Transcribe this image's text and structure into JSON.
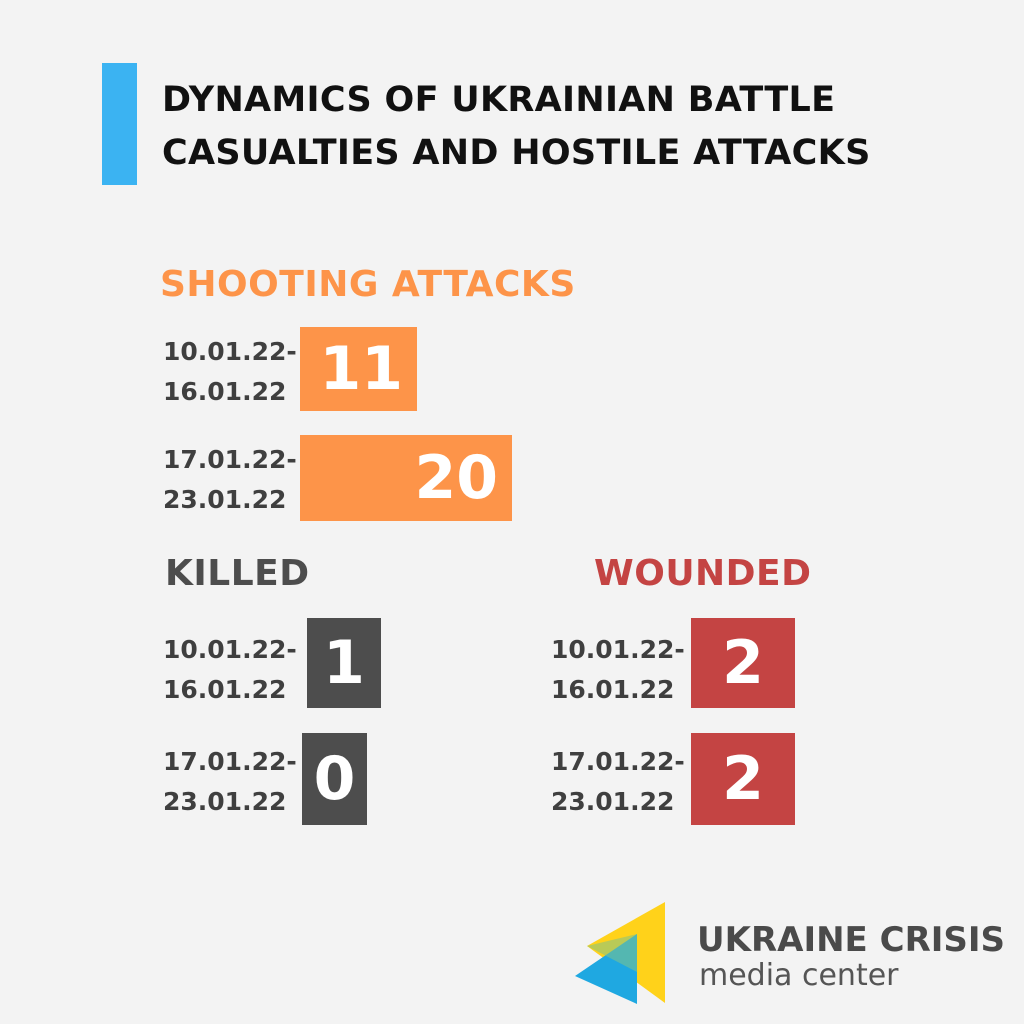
{
  "title_lines": [
    "DYNAMICS OF UKRAINIAN BATTLE",
    "CASUALTIES AND HOSTILE ATTACKS"
  ],
  "colors": {
    "accent": "#3bb3f2",
    "shooting": "#fd9449",
    "killed": "#4d4d4d",
    "wounded": "#c44443",
    "logo_yellow": "#ffd21a",
    "logo_blue": "#1fa8e1"
  },
  "chart_data": [
    {
      "type": "bar",
      "title": "SHOOTING  ATTACKS",
      "categories": [
        [
          "10.01.22-",
          "16.01.22"
        ],
        [
          "17.01.22-",
          "23.01.22"
        ]
      ],
      "values": [
        11,
        20
      ]
    },
    {
      "type": "table",
      "title": "KILLED",
      "categories": [
        [
          "10.01.22-",
          "16.01.22"
        ],
        [
          "17.01.22-",
          "23.01.22"
        ]
      ],
      "values": [
        1,
        0
      ]
    },
    {
      "type": "table",
      "title": "WOUNDED",
      "categories": [
        [
          "10.01.22-",
          "16.01.22"
        ],
        [
          "17.01.22-",
          "23.01.22"
        ]
      ],
      "values": [
        2,
        2
      ]
    }
  ],
  "logo": {
    "line1": "UKRAINE CRISIS",
    "line2": "media center",
    "icon": "ukraine-crisis-logo-icon"
  }
}
